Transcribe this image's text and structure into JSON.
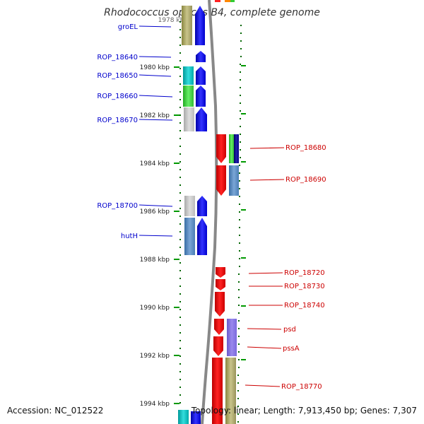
{
  "title": "Rhodococcus opacus B4, complete genome",
  "footer": {
    "accession": "Accession: NC_012522",
    "summary": "Topology: linear; Length: 7,913,450 bp; Genes: 7,307"
  },
  "scale": {
    "top_tick_partial": "1978 kbp",
    "ticks": [
      "1980 kbp",
      "1982 kbp",
      "1984 kbp",
      "1986 kbp",
      "1988 kbp",
      "1990 kbp",
      "1992 kbp",
      "1994 kbp"
    ]
  },
  "left_genes": [
    {
      "name": "groEL",
      "color": "#0000cc"
    },
    {
      "name": "ROP_18640",
      "color": "#0000cc"
    },
    {
      "name": "ROP_18650",
      "color": "#0000cc"
    },
    {
      "name": "ROP_18660",
      "color": "#0000cc"
    },
    {
      "name": "ROP_18670",
      "color": "#0000cc"
    },
    {
      "name": "ROP_18700",
      "color": "#0000cc"
    },
    {
      "name": "hutH",
      "color": "#0000cc"
    }
  ],
  "right_genes": [
    {
      "name": "ROP_18680",
      "color": "#cc0000"
    },
    {
      "name": "ROP_18690",
      "color": "#cc0000"
    },
    {
      "name": "ROP_18720",
      "color": "#cc0000"
    },
    {
      "name": "ROP_18730",
      "color": "#cc0000"
    },
    {
      "name": "ROP_18740",
      "color": "#cc0000"
    },
    {
      "name": "psd",
      "color": "#cc0000"
    },
    {
      "name": "pssA",
      "color": "#cc0000"
    },
    {
      "name": "ROP_18770",
      "color": "#cc0000"
    }
  ],
  "colors": {
    "forward_strand": "#0000ff",
    "reverse_strand": "#ff0000",
    "genome_line": "#888888",
    "guide_dots": "#006600"
  }
}
